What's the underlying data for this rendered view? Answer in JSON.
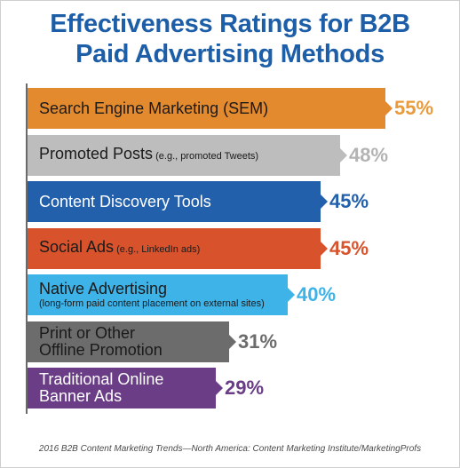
{
  "title_line1": "Effectiveness Ratings for B2B",
  "title_line2": "Paid Advertising Methods",
  "source": "2016 B2B Content Marketing Trends—North America: Content Marketing Institute/MarketingProfs",
  "chart_data": {
    "type": "bar",
    "orientation": "horizontal",
    "title": "Effectiveness Ratings for B2B Paid Advertising Methods",
    "value_suffix": "%",
    "xlim": [
      0,
      55
    ],
    "grid": false,
    "legend": "none",
    "bars": [
      {
        "label": "Search Engine Marketing (SEM)",
        "label_small": "",
        "label_sub": "",
        "value": 55,
        "value_label": "55%",
        "bar_color": "#e48a2e",
        "text_color": "#1a1a1a",
        "value_color": "#e99a3c"
      },
      {
        "label": "Promoted Posts",
        "label_small": " (e.g., promoted Tweets)",
        "label_sub": "",
        "value": 48,
        "value_label": "48%",
        "bar_color": "#bdbdbd",
        "text_color": "#1a1a1a",
        "value_color": "#b3b3b3"
      },
      {
        "label": "Content Discovery Tools",
        "label_small": "",
        "label_sub": "",
        "value": 45,
        "value_label": "45%",
        "bar_color": "#2260ac",
        "text_color": "#ffffff",
        "value_color": "#2260ac"
      },
      {
        "label": "Social Ads",
        "label_small": " (e.g., LinkedIn ads)",
        "label_sub": "",
        "value": 45,
        "value_label": "45%",
        "bar_color": "#d8532c",
        "text_color": "#1a1a1a",
        "value_color": "#d8532c"
      },
      {
        "label": "Native Advertising",
        "label_small": "",
        "label_sub": "(long-form paid content placement on external sites)",
        "value": 40,
        "value_label": "40%",
        "bar_color": "#3eb3e8",
        "text_color": "#1a1a1a",
        "value_color": "#3eb3e8"
      },
      {
        "label": "Print or Other Offline Promotion",
        "label_small": "",
        "label_sub": "",
        "value": 31,
        "value_label": "31%",
        "bar_color": "#6c6c6c",
        "text_color": "#1a1a1a",
        "value_color": "#6c6c6c"
      },
      {
        "label": "Traditional Online Banner Ads",
        "label_small": "",
        "label_sub": "",
        "value": 29,
        "value_label": "29%",
        "bar_color": "#6a3d86",
        "text_color": "#ffffff",
        "value_color": "#6a3d86"
      }
    ]
  }
}
